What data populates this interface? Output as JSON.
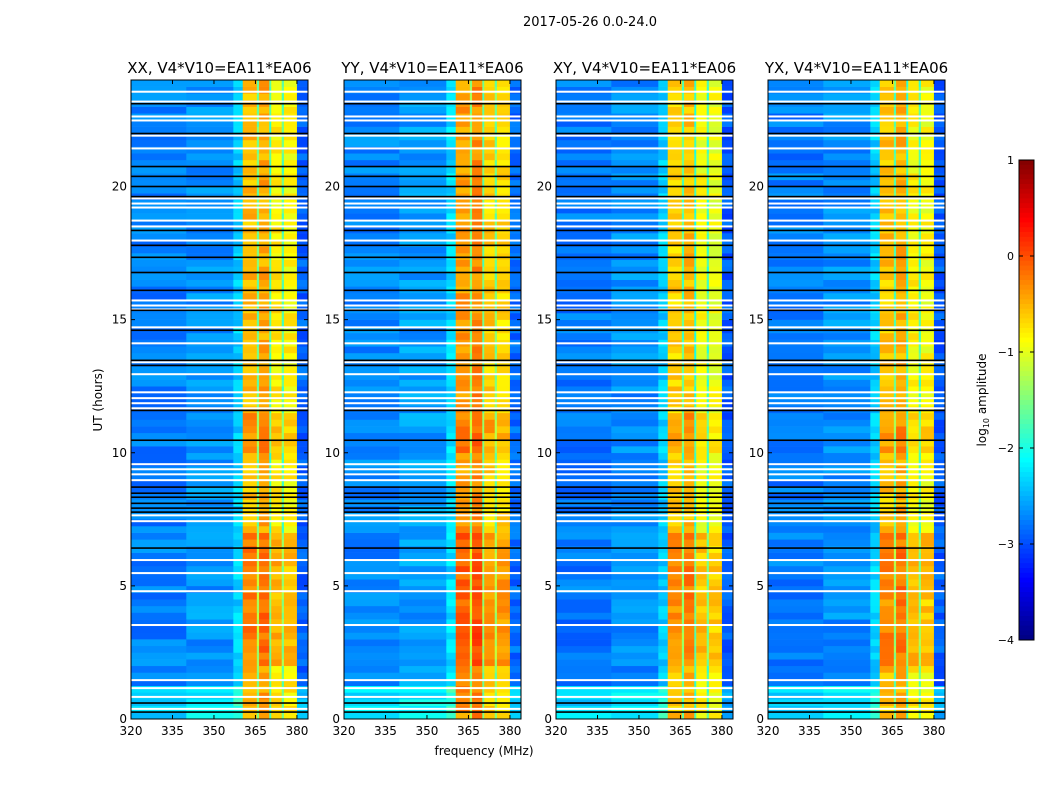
{
  "chart_data": {
    "type": "heatmap",
    "title": "2017-05-26 0.0-24.0",
    "xlabel": "frequency (MHz)",
    "ylabel": "UT (hours)",
    "xlim": [
      320,
      384
    ],
    "ylim": [
      0,
      24
    ],
    "xticks": [
      320,
      335,
      350,
      365,
      380
    ],
    "yticks": [
      0,
      5,
      10,
      15,
      20
    ],
    "colorbar": {
      "label": "log10 amplitude",
      "label_main": "log",
      "label_sub": "10",
      "label_rest": " amplitude",
      "range": [
        -4,
        1
      ],
      "ticks": [
        1,
        0,
        -1,
        -2,
        -3,
        -4
      ],
      "tick_labels": [
        "1",
        "0",
        "−1",
        "−2",
        "−3",
        "−4"
      ],
      "colormap": "jet"
    },
    "panels": [
      {
        "title": "XX, V4*V10=EA11*EA06",
        "gain": 0
      },
      {
        "title": "YY, V4*V10=EA11*EA06",
        "gain": 0.15
      },
      {
        "title": "XY, V4*V10=EA11*EA06",
        "gain": -0.1
      },
      {
        "title": "YX, V4*V10=EA11*EA06",
        "gain": -0.05
      }
    ],
    "frequency_bands": [
      {
        "from": 320,
        "to": 340,
        "level": -2.75
      },
      {
        "from": 340,
        "to": 357,
        "level": -2.65
      },
      {
        "from": 357,
        "to": 360.4,
        "level": -2.35
      },
      {
        "from": 360.4,
        "to": 365.5,
        "level": -0.55
      },
      {
        "from": 365.5,
        "to": 366.3,
        "level": -1.6
      },
      {
        "from": 366.3,
        "to": 370,
        "level": -0.45
      },
      {
        "from": 370,
        "to": 370.7,
        "level": -1.8
      },
      {
        "from": 370.7,
        "to": 374.5,
        "level": -0.8
      },
      {
        "from": 374.5,
        "to": 375.3,
        "level": -1.7
      },
      {
        "from": 375.3,
        "to": 380,
        "level": -0.85
      },
      {
        "from": 380,
        "to": 384,
        "level": -2.9
      }
    ],
    "time_modulation": [
      {
        "from": 0,
        "to": 2,
        "boost": 0.05
      },
      {
        "from": 2,
        "to": 7,
        "boost": 0.3
      },
      {
        "from": 7,
        "to": 10,
        "boost": 0
      },
      {
        "from": 10,
        "to": 11.5,
        "boost": 0.2
      },
      {
        "from": 11.5,
        "to": 24,
        "boost": 0
      }
    ],
    "flagged_white_hours": [
      23.56,
      23.19,
      22.63,
      22.48,
      21.91,
      21.43,
      19.55,
      19.36,
      19.21,
      18.72,
      18.5,
      17.97,
      15.72,
      15.53,
      15.38,
      14.71,
      14.11,
      13.4,
      12.95,
      12.27,
      12.05,
      11.86,
      11.67,
      9.57,
      9.38,
      9.19,
      8.97,
      7.65,
      7.43,
      5.97,
      5.48,
      4.8,
      3.53,
      1.46,
      1.16,
      0.83,
      0.38
    ],
    "flagged_black_hours": [
      23.11,
      21.99,
      20.75,
      20.38,
      20.0,
      19.62,
      18.35,
      17.79,
      17.34,
      16.77,
      16.1,
      15.35,
      14.6,
      13.47,
      13.28,
      11.59,
      10.47,
      8.71,
      8.48,
      8.33,
      8.1,
      7.92,
      7.77,
      6.42,
      0.6,
      0.26
    ]
  }
}
